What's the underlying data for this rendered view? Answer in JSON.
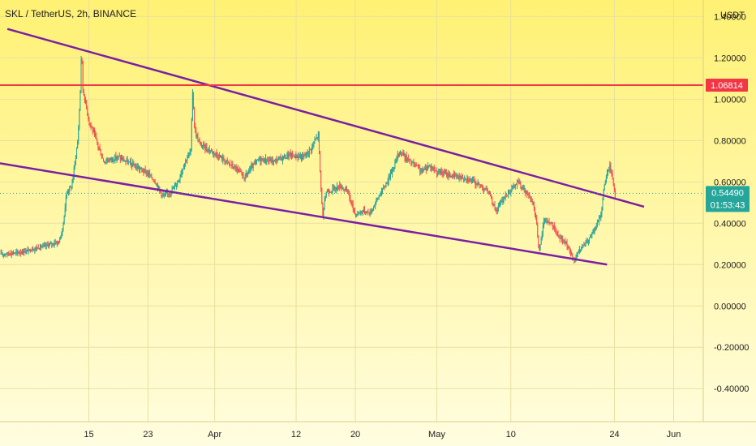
{
  "header": {
    "symbol_title": "SKL / TetherUS, 2h, BINANCE",
    "currency": "USDT"
  },
  "colors": {
    "background_top": "#fff173",
    "background_bottom": "#fffde0",
    "candle_up": "#26a69a",
    "candle_down": "#ef5350",
    "trendline": "#7b1fa2",
    "resistance": "#f23645",
    "last_price_line": "#26a69a",
    "grid": "#e8dfa0"
  },
  "chart_data": {
    "type": "candlestick",
    "title": "SKL / TetherUS, 2h, BINANCE",
    "ylabel": "USDT",
    "ylim": [
      -0.56,
      1.48
    ],
    "y_ticks": [
      "1.40000",
      "1.20000",
      "1.00000",
      "0.80000",
      "0.60000",
      "0.40000",
      "0.20000",
      "0.00000",
      "-0.20000",
      "-0.40000"
    ],
    "y_tick_values": [
      1.4,
      1.2,
      1.0,
      0.8,
      0.6,
      0.4,
      0.2,
      0.0,
      -0.2,
      -0.4
    ],
    "x_ticks": [
      "15",
      "23",
      "Apr",
      "12",
      "20",
      "May",
      "10",
      "24",
      "Jun"
    ],
    "x_tick_positions": [
      9,
      17,
      26,
      37,
      45,
      56,
      66,
      80,
      88
    ],
    "xlim": [
      -3,
      92
    ],
    "price_path": [
      [
        -3,
        0.25
      ],
      [
        0,
        0.26
      ],
      [
        2,
        0.28
      ],
      [
        4,
        0.3
      ],
      [
        5,
        0.31
      ],
      [
        5.5,
        0.38
      ],
      [
        6,
        0.55
      ],
      [
        6.7,
        0.58
      ],
      [
        7.5,
        0.8
      ],
      [
        7.8,
        1.0
      ],
      [
        8,
        1.25
      ],
      [
        8.2,
        1.05
      ],
      [
        9,
        0.9
      ],
      [
        10,
        0.8
      ],
      [
        11,
        0.7
      ],
      [
        13,
        0.72
      ],
      [
        15,
        0.68
      ],
      [
        17,
        0.64
      ],
      [
        18,
        0.6
      ],
      [
        19,
        0.53
      ],
      [
        20,
        0.55
      ],
      [
        21,
        0.6
      ],
      [
        22,
        0.7
      ],
      [
        22.8,
        0.75
      ],
      [
        23,
        1.05
      ],
      [
        23.3,
        0.85
      ],
      [
        24,
        0.78
      ],
      [
        26,
        0.74
      ],
      [
        27.5,
        0.7
      ],
      [
        29,
        0.66
      ],
      [
        30,
        0.62
      ],
      [
        31,
        0.67
      ],
      [
        32,
        0.71
      ],
      [
        34,
        0.7
      ],
      [
        36,
        0.73
      ],
      [
        38,
        0.72
      ],
      [
        39,
        0.76
      ],
      [
        40,
        0.83
      ],
      [
        40.3,
        0.6
      ],
      [
        40.6,
        0.43
      ],
      [
        41,
        0.55
      ],
      [
        43,
        0.58
      ],
      [
        44,
        0.55
      ],
      [
        45,
        0.44
      ],
      [
        46,
        0.46
      ],
      [
        47,
        0.45
      ],
      [
        48,
        0.52
      ],
      [
        49,
        0.58
      ],
      [
        50,
        0.66
      ],
      [
        51,
        0.75
      ],
      [
        52,
        0.71
      ],
      [
        54,
        0.65
      ],
      [
        55,
        0.68
      ],
      [
        56,
        0.65
      ],
      [
        58,
        0.63
      ],
      [
        60,
        0.62
      ],
      [
        62,
        0.58
      ],
      [
        63,
        0.55
      ],
      [
        64,
        0.46
      ],
      [
        65,
        0.52
      ],
      [
        66,
        0.56
      ],
      [
        67,
        0.6
      ],
      [
        68,
        0.55
      ],
      [
        69,
        0.5
      ],
      [
        69.5,
        0.4
      ],
      [
        69.8,
        0.25
      ],
      [
        70.5,
        0.42
      ],
      [
        71.5,
        0.4
      ],
      [
        72.5,
        0.33
      ],
      [
        73.5,
        0.3
      ],
      [
        74.2,
        0.25
      ],
      [
        74.5,
        0.22
      ],
      [
        75.5,
        0.28
      ],
      [
        76.5,
        0.32
      ],
      [
        77.5,
        0.38
      ],
      [
        78.2,
        0.45
      ],
      [
        78.6,
        0.58
      ],
      [
        79,
        0.64
      ],
      [
        79.4,
        0.68
      ],
      [
        79.8,
        0.6
      ],
      [
        80.1,
        0.5449
      ]
    ],
    "trendlines": [
      {
        "name": "upper channel line",
        "points": [
          [
            -2,
            1.34
          ],
          [
            84,
            0.48
          ]
        ]
      },
      {
        "name": "lower channel line",
        "points": [
          [
            -3,
            0.69
          ],
          [
            79,
            0.2
          ]
        ]
      }
    ],
    "resistance_level": {
      "value": 1.06814,
      "label": "1.06814"
    },
    "last_price": {
      "value": 0.5449,
      "label": "0.54490",
      "countdown": "01:53:43"
    },
    "grid": true
  }
}
